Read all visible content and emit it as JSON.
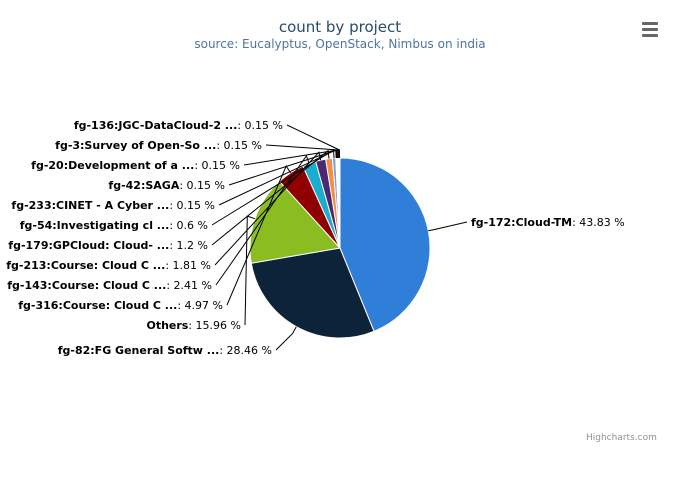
{
  "chart_data": {
    "type": "pie",
    "title": "count by project",
    "subtitle": "source: Eucalyptus, OpenStack, Nimbus on india",
    "slices": [
      {
        "label": "fg-172:Cloud-TM",
        "value": 43.83,
        "display": "43.83 %",
        "color": "#2f7ed8"
      },
      {
        "label": "fg-82:FG General Softw ...",
        "value": 28.46,
        "display": "28.46 %",
        "color": "#0d233a"
      },
      {
        "label": "Others",
        "value": 15.96,
        "display": "15.96 %",
        "color": "#8bbc21"
      },
      {
        "label": "fg-316:Course: Cloud C ...",
        "value": 4.97,
        "display": "4.97 %",
        "color": "#910000"
      },
      {
        "label": "fg-143:Course: Cloud C ...",
        "value": 2.41,
        "display": "2.41 %",
        "color": "#1aadce"
      },
      {
        "label": "fg-213:Course: Cloud C ...",
        "value": 1.81,
        "display": "1.81 %",
        "color": "#492970"
      },
      {
        "label": "fg-179:GPCloud: Cloud- ...",
        "value": 1.2,
        "display": "1.2 %",
        "color": "#f28f43"
      },
      {
        "label": "fg-54:Investigating cl ...",
        "value": 0.6,
        "display": "0.6 %",
        "color": "#77a1e5"
      },
      {
        "label": "fg-233:CINET - A Cyber ...",
        "value": 0.15,
        "display": "0.15 %",
        "color": "#c42525"
      },
      {
        "label": "fg-42:SAGA",
        "value": 0.15,
        "display": "0.15 %",
        "color": "#a6c96a"
      },
      {
        "label": "fg-20:Development of a ...",
        "value": 0.15,
        "display": "0.15 %",
        "color": "#2f7ed8"
      },
      {
        "label": "fg-3:Survey of Open-So ...",
        "value": 0.15,
        "display": "0.15 %",
        "color": "#0d233a"
      },
      {
        "label": "fg-136:JGC-DataCloud-2 ...",
        "value": 0.15,
        "display": "0.15 %",
        "color": "#8bbc21"
      }
    ]
  },
  "ui": {
    "credits": "Highcharts.com",
    "menu_icon": "hamburger-menu-icon"
  }
}
